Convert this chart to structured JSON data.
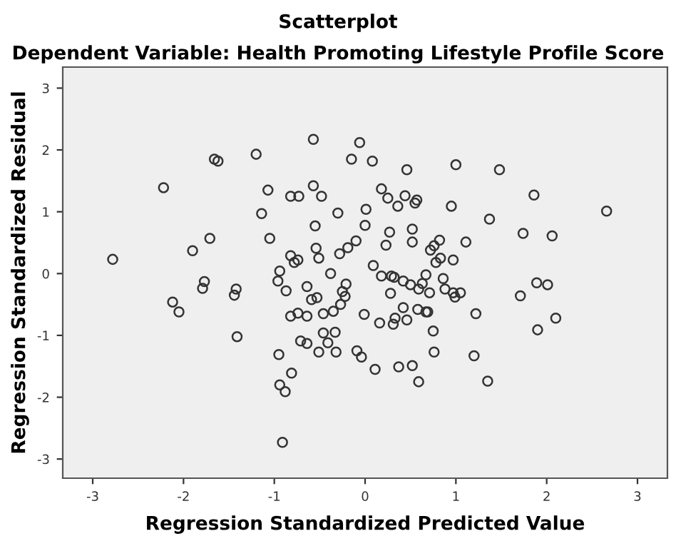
{
  "chart_data": {
    "type": "scatter",
    "title": "Scatterplot",
    "subtitle": "Dependent Variable: Health Promoting Lifestyle Profile Score",
    "xlabel": "Regression Standardized Predicted Value",
    "ylabel": "Regression Standardized Residual",
    "xlim": [
      -3.33,
      3.33
    ],
    "ylim": [
      -3.31,
      3.34
    ],
    "xticks": [
      -3,
      -2,
      -1,
      0,
      1,
      2,
      3
    ],
    "yticks": [
      -3,
      -2,
      -1,
      0,
      1,
      2,
      3
    ],
    "grid": false,
    "legend": false,
    "marker": "circle",
    "series": [
      {
        "color": "#333333",
        "x": [
          -2.78,
          -2.22,
          -1.66,
          -1.62,
          -1.2,
          -1.07,
          -1.14,
          -1.71,
          -1.9,
          -1.05,
          -1.77,
          -1.79,
          -1.42,
          -1.44,
          -2.12,
          -2.05,
          -1.41,
          -0.57,
          -0.06,
          -0.15,
          0.08,
          0.46,
          -0.82,
          -0.73,
          -0.57,
          -0.48,
          0.18,
          0.25,
          0.36,
          0.44,
          0.55,
          0.57,
          -0.3,
          0.01,
          0.95,
          1.0,
          -0.55,
          0.0,
          -0.1,
          -0.19,
          -0.28,
          0.23,
          0.27,
          0.52,
          0.52,
          -0.54,
          -0.51,
          -0.82,
          -0.78,
          -0.74,
          -0.94,
          -0.96,
          -0.87,
          -0.38,
          -0.64,
          -0.59,
          -0.53,
          -0.21,
          -0.25,
          -0.22,
          -0.27,
          -0.35,
          -0.46,
          -0.82,
          -0.74,
          -0.64,
          0.09,
          0.18,
          0.29,
          0.32,
          0.28,
          0.42,
          0.5,
          0.59,
          0.63,
          0.67,
          0.71,
          0.72,
          0.76,
          0.82,
          0.78,
          0.83,
          0.97,
          0.86,
          0.88,
          0.97,
          -0.01,
          0.16,
          0.31,
          0.33,
          0.46,
          0.42,
          0.58,
          0.67,
          0.69,
          0.75,
          0.76,
          -0.46,
          -0.33,
          -0.41,
          -0.71,
          -0.64,
          -0.51,
          -0.32,
          -0.09,
          -0.04,
          0.11,
          0.37,
          0.52,
          0.59,
          -0.95,
          -0.81,
          -0.94,
          -0.88,
          -0.91,
          1.48,
          1.86,
          2.66,
          1.37,
          1.74,
          2.06,
          1.11,
          0.99,
          1.05,
          1.89,
          2.01,
          1.71,
          1.22,
          2.1,
          1.9,
          1.2,
          1.35
        ],
        "values": [
          0.23,
          1.39,
          1.85,
          1.82,
          1.93,
          1.35,
          0.97,
          0.57,
          0.37,
          0.57,
          -0.13,
          -0.24,
          -0.25,
          -0.35,
          -0.46,
          -0.62,
          -1.02,
          2.17,
          2.12,
          1.85,
          1.82,
          1.68,
          1.25,
          1.25,
          1.42,
          1.25,
          1.37,
          1.22,
          1.09,
          1.26,
          1.14,
          1.19,
          0.98,
          1.04,
          1.09,
          1.76,
          0.77,
          0.78,
          0.53,
          0.42,
          0.32,
          0.46,
          0.67,
          0.72,
          0.51,
          0.41,
          0.25,
          0.29,
          0.18,
          0.22,
          0.04,
          -0.12,
          -0.28,
          0.0,
          -0.21,
          -0.42,
          -0.39,
          -0.17,
          -0.29,
          -0.37,
          -0.5,
          -0.61,
          -0.65,
          -0.69,
          -0.64,
          -0.69,
          0.13,
          -0.04,
          -0.04,
          -0.06,
          -0.32,
          -0.12,
          -0.18,
          -0.25,
          -0.16,
          -0.02,
          -0.31,
          0.38,
          0.45,
          0.54,
          0.18,
          0.25,
          0.22,
          -0.08,
          -0.25,
          -0.31,
          -0.66,
          -0.8,
          -0.82,
          -0.72,
          -0.75,
          -0.55,
          -0.58,
          -0.62,
          -0.62,
          -0.93,
          -1.27,
          -0.96,
          -0.95,
          -1.12,
          -1.09,
          -1.13,
          -1.27,
          -1.27,
          -1.25,
          -1.35,
          -1.55,
          -1.51,
          -1.49,
          -1.75,
          -1.31,
          -1.61,
          -1.8,
          -1.91,
          -2.73,
          1.68,
          1.27,
          1.01,
          0.88,
          0.65,
          0.61,
          0.51,
          -0.38,
          -0.31,
          -0.15,
          -0.18,
          -0.36,
          -0.65,
          -0.72,
          -0.91,
          -1.33,
          -1.74
        ]
      }
    ]
  }
}
